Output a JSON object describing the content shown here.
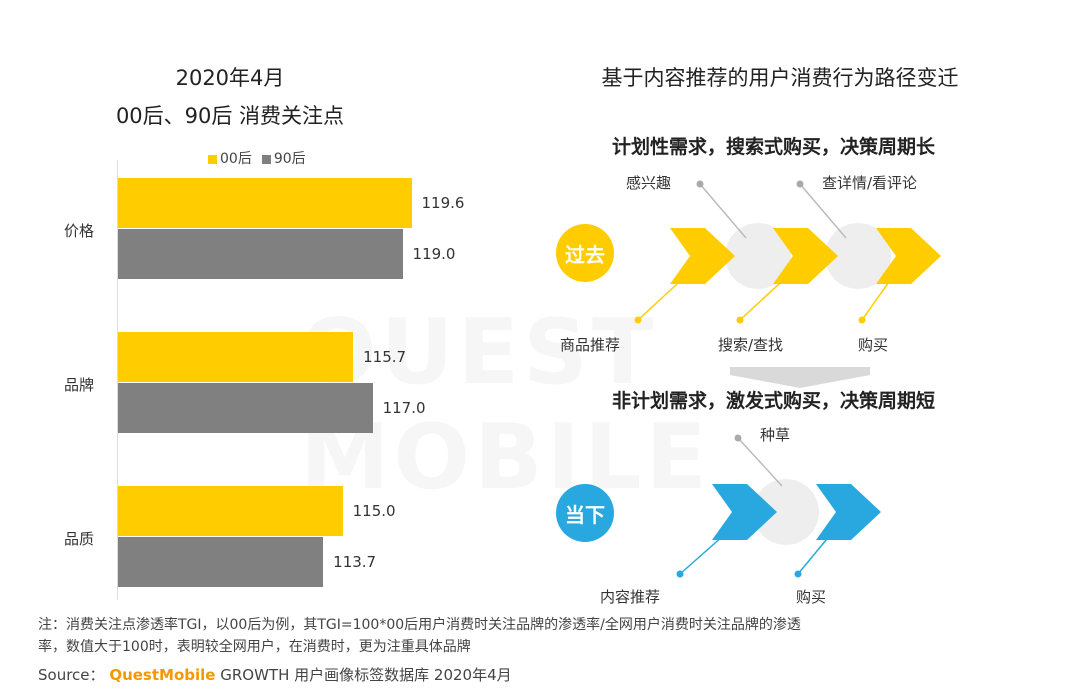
{
  "chart_data": [
    {
      "type": "bar",
      "orientation": "horizontal",
      "title": "2020年4月",
      "subtitle": "00后、90后 消费关注点",
      "categories": [
        "价格",
        "品牌",
        "品质"
      ],
      "series": [
        {
          "name": "00后",
          "values": [
            119.6,
            115.7,
            115.0
          ],
          "color": "#FFCC00"
        },
        {
          "name": "90后",
          "values": [
            119.0,
            117.0,
            113.7
          ],
          "color": "#808080"
        }
      ],
      "value_labels": [
        "119.6",
        "119.0",
        "115.7",
        "117.0",
        "115.0",
        "113.7"
      ],
      "xlim": [
        100,
        120.5
      ],
      "legend_position": "top",
      "grid": false
    }
  ],
  "diagram": {
    "title": "基于内容推荐的用户消费行为路径变迁",
    "past": {
      "heading": "计划性需求，搜索式购买，决策周期长",
      "badge": "过去",
      "badge_color": "#FFCC00",
      "top_labels": [
        "感兴趣",
        "查详情/看评论"
      ],
      "bottom_labels": [
        "商品推荐",
        "搜索/查找",
        "购买"
      ]
    },
    "present": {
      "heading": "非计划需求，激发式购买，决策周期短",
      "badge": "当下",
      "badge_color": "#29A8E0",
      "top_labels": [
        "种草"
      ],
      "bottom_labels": [
        "内容推荐",
        "购买"
      ]
    }
  },
  "footer": {
    "note_line1": "注：消费关注点渗透率TGI，以00后为例，其TGI=100*00后用户消费时关注品牌的渗透率/全网用户消费时关注品牌的渗透",
    "note_line2": "率，数值大于100时，表明较全网用户，在消费时，更为注重具体品牌",
    "source_prefix": "Source：",
    "source_brand": "QuestMobile",
    "source_rest": "GROWTH 用户画像标签数据库 2020年4月"
  },
  "watermark": "QUEST MOBILE"
}
